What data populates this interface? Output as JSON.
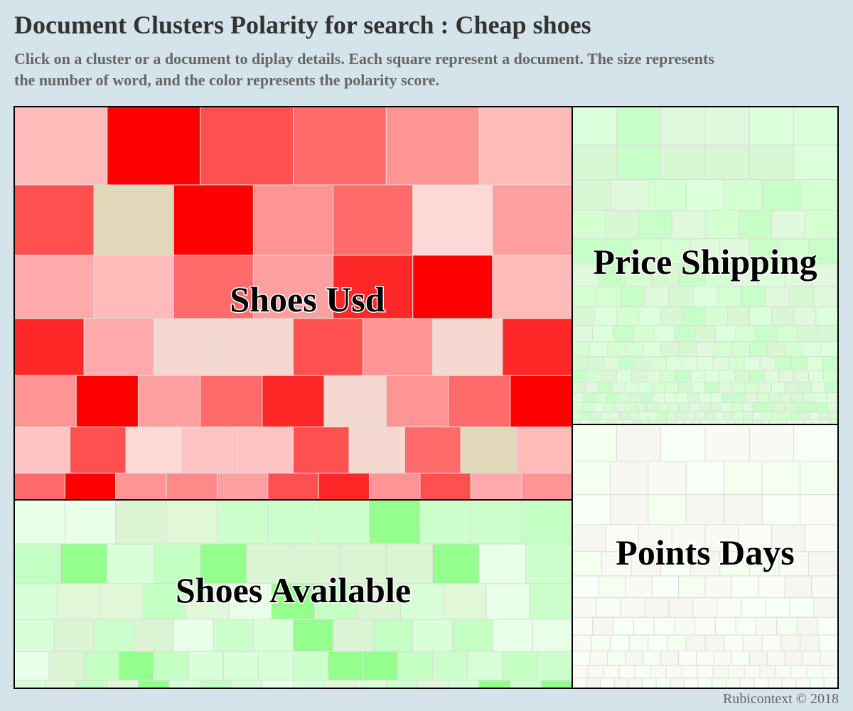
{
  "header": {
    "title": "Document Clusters Polarity for search : Cheap shoes",
    "subtitle": "Click on a cluster or a document to diplay details. Each square represent a document. The size represents the number of word, and the color represents the polarity score."
  },
  "clusters": [
    {
      "label": "Shoes Usd"
    },
    {
      "label": "Shoes Available"
    },
    {
      "label": "Price Shipping"
    },
    {
      "label": "Points Days"
    }
  ],
  "footer": {
    "credit": "Rubicontext © 2018"
  }
}
